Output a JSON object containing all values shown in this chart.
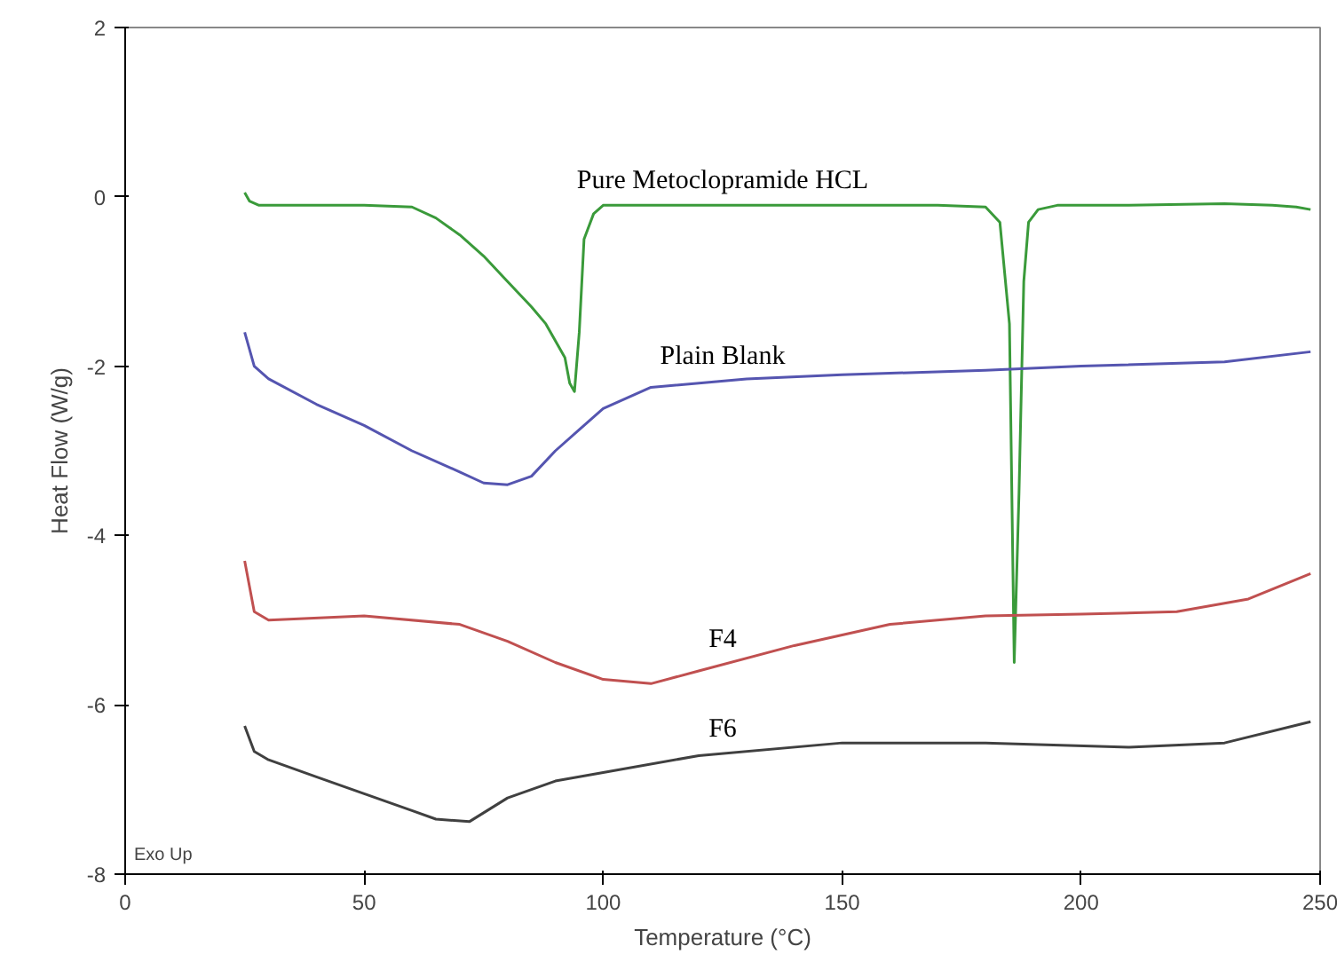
{
  "chart_data": {
    "type": "line",
    "xlabel": "Temperature (°C)",
    "ylabel": "Heat Flow (W/g)",
    "xlim": [
      0,
      250
    ],
    "ylim": [
      -8,
      2
    ],
    "xticks": [
      0,
      50,
      100,
      150,
      200,
      250
    ],
    "yticks": [
      -8,
      -6,
      -4,
      -2,
      0,
      2
    ],
    "grid": false,
    "marker": "none",
    "line_style": "solid",
    "annotations": [
      "Exo Up"
    ],
    "series": [
      {
        "name": "Pure Metoclopramide HCL",
        "color": "#3a9a3a",
        "x": [
          25,
          26,
          28,
          35,
          50,
          60,
          65,
          70,
          75,
          80,
          85,
          88,
          90,
          92,
          93,
          94,
          95,
          96,
          98,
          100,
          110,
          130,
          150,
          170,
          180,
          183,
          185,
          186,
          187,
          188,
          189,
          191,
          195,
          210,
          230,
          240,
          245,
          248
        ],
        "values": [
          0.05,
          -0.05,
          -0.1,
          -0.1,
          -0.1,
          -0.12,
          -0.25,
          -0.45,
          -0.7,
          -1.0,
          -1.3,
          -1.5,
          -1.7,
          -1.9,
          -2.2,
          -2.3,
          -1.6,
          -0.5,
          -0.2,
          -0.1,
          -0.1,
          -0.1,
          -0.1,
          -0.1,
          -0.12,
          -0.3,
          -1.5,
          -5.5,
          -3.5,
          -1.0,
          -0.3,
          -0.15,
          -0.1,
          -0.1,
          -0.08,
          -0.1,
          -0.12,
          -0.15
        ]
      },
      {
        "name": "Plain Blank",
        "color": "#5555b0",
        "x": [
          25,
          27,
          30,
          40,
          50,
          60,
          70,
          75,
          80,
          85,
          90,
          95,
          100,
          110,
          130,
          150,
          180,
          200,
          230,
          248
        ],
        "values": [
          -1.6,
          -2.0,
          -2.15,
          -2.45,
          -2.7,
          -3.0,
          -3.25,
          -3.38,
          -3.4,
          -3.3,
          -3.0,
          -2.75,
          -2.5,
          -2.25,
          -2.15,
          -2.1,
          -2.05,
          -2.0,
          -1.95,
          -1.83
        ]
      },
      {
        "name": "F4",
        "color": "#c05050",
        "x": [
          25,
          27,
          30,
          50,
          70,
          80,
          90,
          100,
          110,
          120,
          140,
          160,
          180,
          200,
          220,
          235,
          248
        ],
        "values": [
          -4.3,
          -4.9,
          -5.0,
          -4.95,
          -5.05,
          -5.25,
          -5.5,
          -5.7,
          -5.75,
          -5.6,
          -5.3,
          -5.05,
          -4.95,
          -4.93,
          -4.9,
          -4.75,
          -4.45
        ]
      },
      {
        "name": "F6",
        "color": "#404040",
        "x": [
          25,
          27,
          30,
          40,
          50,
          60,
          65,
          72,
          80,
          90,
          100,
          120,
          150,
          180,
          210,
          230,
          248
        ],
        "values": [
          -6.25,
          -6.55,
          -6.65,
          -6.85,
          -7.05,
          -7.25,
          -7.35,
          -7.38,
          -7.1,
          -6.9,
          -6.8,
          -6.6,
          -6.45,
          -6.45,
          -6.5,
          -6.45,
          -6.2
        ]
      }
    ]
  }
}
